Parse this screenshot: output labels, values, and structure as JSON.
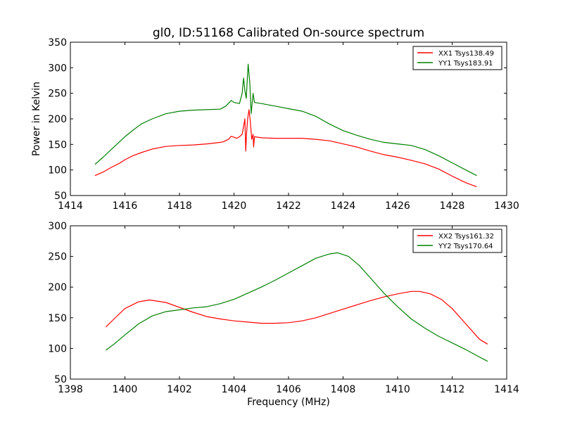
{
  "figure": {
    "title": "gl0, ID:51168 Calibrated On-source spectrum"
  },
  "chart_data": [
    {
      "type": "line",
      "title": "gl0, ID:51168 Calibrated On-source spectrum",
      "xlabel": "",
      "ylabel": "Power in Kelvin",
      "xlim": [
        1414,
        1430
      ],
      "ylim": [
        50,
        350
      ],
      "x_ticks": [
        "1414",
        "1416",
        "1418",
        "1420",
        "1422",
        "1424",
        "1426",
        "1428",
        "1430"
      ],
      "y_ticks": [
        "50",
        "100",
        "150",
        "200",
        "250",
        "300",
        "350"
      ],
      "legend_position": "top-right",
      "grid": false,
      "series": [
        {
          "name": "XX1 Tsys138.49",
          "color": "#ff0000",
          "points": [
            [
              1414.9,
              89
            ],
            [
              1415.2,
              96
            ],
            [
              1415.5,
              105
            ],
            [
              1415.8,
              113
            ],
            [
              1416.0,
              120
            ],
            [
              1416.3,
              128
            ],
            [
              1416.6,
              134
            ],
            [
              1417.0,
              141
            ],
            [
              1417.5,
              146
            ],
            [
              1418.0,
              148
            ],
            [
              1418.5,
              149
            ],
            [
              1419.0,
              151
            ],
            [
              1419.5,
              154
            ],
            [
              1419.6,
              155
            ],
            [
              1419.8,
              160
            ],
            [
              1419.9,
              166
            ],
            [
              1420.1,
              162
            ],
            [
              1420.2,
              165
            ],
            [
              1420.3,
              170
            ],
            [
              1420.35,
              185
            ],
            [
              1420.4,
              200
            ],
            [
              1420.43,
              137
            ],
            [
              1420.46,
              170
            ],
            [
              1420.5,
              200
            ],
            [
              1420.55,
              218
            ],
            [
              1420.6,
              195
            ],
            [
              1420.65,
              160
            ],
            [
              1420.7,
              170
            ],
            [
              1420.72,
              145
            ],
            [
              1420.75,
              165
            ],
            [
              1421.0,
              163
            ],
            [
              1421.5,
              162
            ],
            [
              1422.0,
              162
            ],
            [
              1422.5,
              162
            ],
            [
              1423.0,
              160
            ],
            [
              1423.5,
              157
            ],
            [
              1424.0,
              151
            ],
            [
              1424.5,
              145
            ],
            [
              1425.0,
              137
            ],
            [
              1425.5,
              130
            ],
            [
              1426.0,
              125
            ],
            [
              1426.5,
              119
            ],
            [
              1427.0,
              112
            ],
            [
              1427.5,
              102
            ],
            [
              1428.0,
              88
            ],
            [
              1428.5,
              75
            ],
            [
              1428.9,
              67
            ]
          ]
        },
        {
          "name": "YY1 Tsys183.91",
          "color": "#008000",
          "points": [
            [
              1414.9,
              111
            ],
            [
              1415.2,
              125
            ],
            [
              1415.5,
              140
            ],
            [
              1415.8,
              155
            ],
            [
              1416.0,
              165
            ],
            [
              1416.3,
              178
            ],
            [
              1416.6,
              190
            ],
            [
              1417.0,
              200
            ],
            [
              1417.5,
              210
            ],
            [
              1418.0,
              215
            ],
            [
              1418.5,
              217
            ],
            [
              1419.0,
              218
            ],
            [
              1419.5,
              219
            ],
            [
              1419.7,
              225
            ],
            [
              1419.9,
              236
            ],
            [
              1420.0,
              232
            ],
            [
              1420.2,
              230
            ],
            [
              1420.3,
              250
            ],
            [
              1420.35,
              280
            ],
            [
              1420.4,
              255
            ],
            [
              1420.45,
              240
            ],
            [
              1420.52,
              307
            ],
            [
              1420.58,
              270
            ],
            [
              1420.63,
              210
            ],
            [
              1420.7,
              250
            ],
            [
              1420.75,
              232
            ],
            [
              1421.0,
              230
            ],
            [
              1421.5,
              225
            ],
            [
              1422.0,
              220
            ],
            [
              1422.5,
              215
            ],
            [
              1423.0,
              205
            ],
            [
              1423.5,
              190
            ],
            [
              1424.0,
              177
            ],
            [
              1424.5,
              168
            ],
            [
              1425.0,
              160
            ],
            [
              1425.5,
              154
            ],
            [
              1426.0,
              151
            ],
            [
              1426.5,
              148
            ],
            [
              1427.0,
              140
            ],
            [
              1427.5,
              128
            ],
            [
              1428.0,
              114
            ],
            [
              1428.5,
              100
            ],
            [
              1428.9,
              89
            ]
          ]
        }
      ]
    },
    {
      "type": "line",
      "title": "",
      "xlabel": "Frequency (MHz)",
      "ylabel": "",
      "xlim": [
        1398,
        1414
      ],
      "ylim": [
        50,
        300
      ],
      "x_ticks": [
        "1398",
        "1400",
        "1402",
        "1404",
        "1406",
        "1408",
        "1410",
        "1412",
        "1414"
      ],
      "y_ticks": [
        "50",
        "100",
        "150",
        "200",
        "250",
        "300"
      ],
      "legend_position": "top-right",
      "grid": false,
      "series": [
        {
          "name": "XX2 Tsys161.32",
          "color": "#ff0000",
          "points": [
            [
              1399.3,
              135
            ],
            [
              1399.6,
              148
            ],
            [
              1400.0,
              165
            ],
            [
              1400.5,
              176
            ],
            [
              1400.9,
              179
            ],
            [
              1401.5,
              175
            ],
            [
              1402.0,
              167
            ],
            [
              1402.5,
              159
            ],
            [
              1403.0,
              152
            ],
            [
              1403.5,
              148
            ],
            [
              1404.0,
              145
            ],
            [
              1404.5,
              143
            ],
            [
              1405.0,
              141
            ],
            [
              1405.5,
              141
            ],
            [
              1406.0,
              142
            ],
            [
              1406.5,
              145
            ],
            [
              1407.0,
              150
            ],
            [
              1407.5,
              157
            ],
            [
              1408.0,
              164
            ],
            [
              1408.5,
              171
            ],
            [
              1409.0,
              178
            ],
            [
              1409.5,
              184
            ],
            [
              1410.0,
              189
            ],
            [
              1410.5,
              193
            ],
            [
              1410.8,
              193
            ],
            [
              1411.2,
              189
            ],
            [
              1411.6,
              180
            ],
            [
              1412.0,
              165
            ],
            [
              1412.5,
              140
            ],
            [
              1413.0,
              115
            ],
            [
              1413.3,
              107
            ]
          ]
        },
        {
          "name": "YY2 Tsys170.64",
          "color": "#008000",
          "points": [
            [
              1399.3,
              97
            ],
            [
              1399.6,
              107
            ],
            [
              1400.0,
              122
            ],
            [
              1400.5,
              140
            ],
            [
              1401.0,
              153
            ],
            [
              1401.5,
              160
            ],
            [
              1402.0,
              163
            ],
            [
              1402.5,
              166
            ],
            [
              1403.0,
              168
            ],
            [
              1403.5,
              173
            ],
            [
              1404.0,
              180
            ],
            [
              1404.5,
              190
            ],
            [
              1405.0,
              200
            ],
            [
              1405.5,
              211
            ],
            [
              1406.0,
              223
            ],
            [
              1406.5,
              235
            ],
            [
              1407.0,
              247
            ],
            [
              1407.5,
              254
            ],
            [
              1407.8,
              256
            ],
            [
              1408.2,
              250
            ],
            [
              1408.6,
              235
            ],
            [
              1409.0,
              215
            ],
            [
              1409.5,
              190
            ],
            [
              1410.0,
              168
            ],
            [
              1410.5,
              148
            ],
            [
              1411.0,
              133
            ],
            [
              1411.5,
              120
            ],
            [
              1412.0,
              109
            ],
            [
              1412.5,
              98
            ],
            [
              1413.0,
              86
            ],
            [
              1413.3,
              79
            ]
          ]
        }
      ]
    }
  ]
}
